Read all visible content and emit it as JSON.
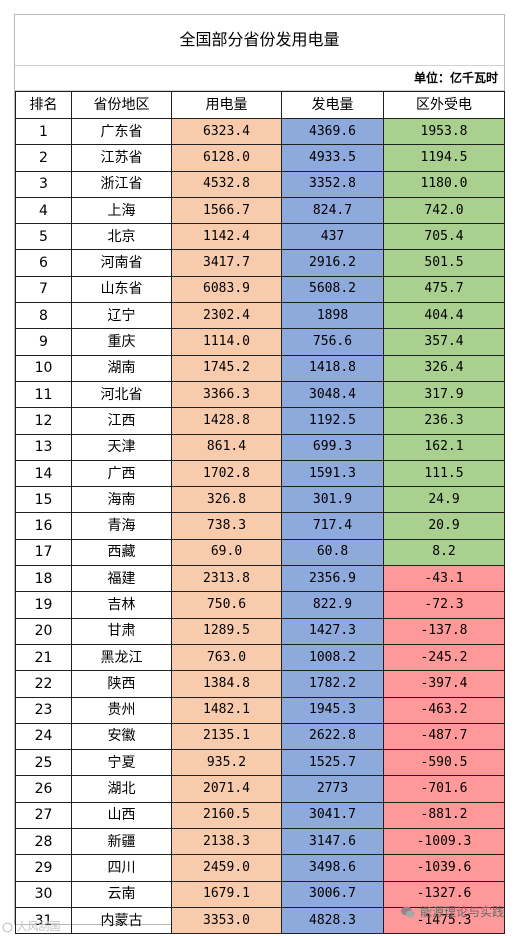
{
  "title": "全国部分省份发用电量",
  "unit": "单位：亿千瓦时",
  "headers": [
    "排名",
    "省份地区",
    "用电量",
    "发电量",
    "区外受电"
  ],
  "rows": [
    {
      "rank": "1",
      "province": "广东省",
      "use": "6323.4",
      "gen": "4369.6",
      "recv": "1953.8"
    },
    {
      "rank": "2",
      "province": "江苏省",
      "use": "6128.0",
      "gen": "4933.5",
      "recv": "1194.5"
    },
    {
      "rank": "3",
      "province": "浙江省",
      "use": "4532.8",
      "gen": "3352.8",
      "recv": "1180.0"
    },
    {
      "rank": "4",
      "province": "上海",
      "use": "1566.7",
      "gen": "824.7",
      "recv": "742.0"
    },
    {
      "rank": "5",
      "province": "北京",
      "use": "1142.4",
      "gen": "437",
      "recv": "705.4"
    },
    {
      "rank": "6",
      "province": "河南省",
      "use": "3417.7",
      "gen": "2916.2",
      "recv": "501.5"
    },
    {
      "rank": "7",
      "province": "山东省",
      "use": "6083.9",
      "gen": "5608.2",
      "recv": "475.7"
    },
    {
      "rank": "8",
      "province": "辽宁",
      "use": "2302.4",
      "gen": "1898",
      "recv": "404.4"
    },
    {
      "rank": "9",
      "province": "重庆",
      "use": "1114.0",
      "gen": "756.6",
      "recv": "357.4"
    },
    {
      "rank": "10",
      "province": "湖南",
      "use": "1745.2",
      "gen": "1418.8",
      "recv": "326.4"
    },
    {
      "rank": "11",
      "province": "河北省",
      "use": "3366.3",
      "gen": "3048.4",
      "recv": "317.9"
    },
    {
      "rank": "12",
      "province": "江西",
      "use": "1428.8",
      "gen": "1192.5",
      "recv": "236.3"
    },
    {
      "rank": "13",
      "province": "天津",
      "use": "861.4",
      "gen": "699.3",
      "recv": "162.1"
    },
    {
      "rank": "14",
      "province": "广西",
      "use": "1702.8",
      "gen": "1591.3",
      "recv": "111.5"
    },
    {
      "rank": "15",
      "province": "海南",
      "use": "326.8",
      "gen": "301.9",
      "recv": "24.9"
    },
    {
      "rank": "16",
      "province": "青海",
      "use": "738.3",
      "gen": "717.4",
      "recv": "20.9"
    },
    {
      "rank": "17",
      "province": "西藏",
      "use": "69.0",
      "gen": "60.8",
      "recv": "8.2"
    },
    {
      "rank": "18",
      "province": "福建",
      "use": "2313.8",
      "gen": "2356.9",
      "recv": "-43.1"
    },
    {
      "rank": "19",
      "province": "吉林",
      "use": "750.6",
      "gen": "822.9",
      "recv": "-72.3"
    },
    {
      "rank": "20",
      "province": "甘肃",
      "use": "1289.5",
      "gen": "1427.3",
      "recv": "-137.8"
    },
    {
      "rank": "21",
      "province": "黑龙江",
      "use": "763.0",
      "gen": "1008.2",
      "recv": "-245.2"
    },
    {
      "rank": "22",
      "province": "陕西",
      "use": "1384.8",
      "gen": "1782.2",
      "recv": "-397.4"
    },
    {
      "rank": "23",
      "province": "贵州",
      "use": "1482.1",
      "gen": "1945.3",
      "recv": "-463.2"
    },
    {
      "rank": "24",
      "province": "安徽",
      "use": "2135.1",
      "gen": "2622.8",
      "recv": "-487.7"
    },
    {
      "rank": "25",
      "province": "宁夏",
      "use": "935.2",
      "gen": "1525.7",
      "recv": "-590.5"
    },
    {
      "rank": "26",
      "province": "湖北",
      "use": "2071.4",
      "gen": "2773",
      "recv": "-701.6"
    },
    {
      "rank": "27",
      "province": "山西",
      "use": "2160.5",
      "gen": "3041.7",
      "recv": "-881.2"
    },
    {
      "rank": "28",
      "province": "新疆",
      "use": "2138.3",
      "gen": "3147.6",
      "recv": "-1009.3"
    },
    {
      "rank": "29",
      "province": "四川",
      "use": "2459.0",
      "gen": "3498.6",
      "recv": "-1039.6"
    },
    {
      "rank": "30",
      "province": "云南",
      "use": "1679.1",
      "gen": "3006.7",
      "recv": "-1327.6"
    },
    {
      "rank": "31",
      "province": "内蒙古",
      "use": "3353.0",
      "gen": "4828.3",
      "recv": "-1475.3"
    }
  ],
  "colors": {
    "use": "#f8cbad",
    "gen": "#8ea9db",
    "recv_positive": "#a9d08e",
    "recv_negative": "#ff9999"
  },
  "watermark_left": "大风刮国",
  "watermark_right": "能源理论与实践"
}
